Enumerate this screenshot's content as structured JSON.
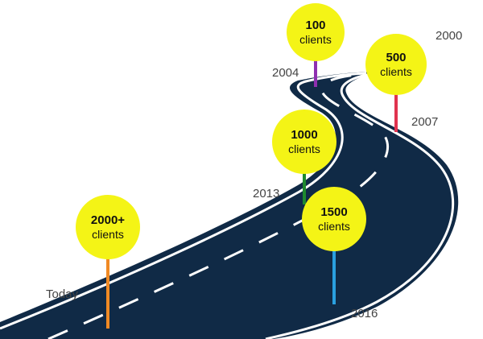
{
  "milestones": [
    {
      "id": "2000",
      "year": "2000",
      "count": "500",
      "label": "clients",
      "stem_color": "#e0334f"
    },
    {
      "id": "2004",
      "year": "2004",
      "count": "100",
      "label": "clients",
      "stem_color": "#8e2fb0"
    },
    {
      "id": "2007",
      "year": "2007",
      "count": "",
      "label": "",
      "stem_color": ""
    },
    {
      "id": "2013",
      "year": "2013",
      "count": "1000",
      "label": "clients",
      "stem_color": "#1e8a2e"
    },
    {
      "id": "2016",
      "year": "2016",
      "count": "1500",
      "label": "clients",
      "stem_color": "#2aa0e0"
    },
    {
      "id": "today",
      "year": "Today",
      "count": "2000+",
      "label": "clients",
      "stem_color": "#f08a24"
    }
  ],
  "colors": {
    "badge": "#f4f416",
    "road": "#102a46",
    "road_edge": "#ffffff",
    "year_text": "#444444"
  }
}
